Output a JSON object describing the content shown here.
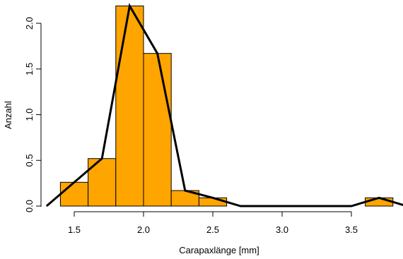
{
  "chart_data": {
    "type": "bar",
    "subtype": "histogram-with-frequency-polygon",
    "title": "",
    "xlabel": "Carapaxlänge [mm]",
    "ylabel": "Anzahl",
    "xlim": [
      1.3,
      3.85
    ],
    "ylim": [
      0,
      2.2
    ],
    "x_ticks": [
      "1.5",
      "2.0",
      "2.5",
      "3.0",
      "3.5"
    ],
    "y_ticks": [
      "0.0",
      "0.5",
      "1.0",
      "1.5",
      "2.0"
    ],
    "bins": [
      {
        "from": 1.4,
        "to": 1.6,
        "value": 0.26
      },
      {
        "from": 1.6,
        "to": 1.8,
        "value": 0.52
      },
      {
        "from": 1.8,
        "to": 2.0,
        "value": 2.19
      },
      {
        "from": 2.0,
        "to": 2.2,
        "value": 1.67
      },
      {
        "from": 2.2,
        "to": 2.4,
        "value": 0.17
      },
      {
        "from": 2.4,
        "to": 2.6,
        "value": 0.09
      },
      {
        "from": 3.6,
        "to": 3.8,
        "value": 0.09
      }
    ],
    "polygon": {
      "x": [
        1.3,
        1.5,
        1.7,
        1.9,
        2.1,
        2.3,
        2.5,
        2.7,
        2.9,
        3.1,
        3.3,
        3.5,
        3.7,
        3.9
      ],
      "y": [
        0,
        0.26,
        0.52,
        2.19,
        1.67,
        0.17,
        0.09,
        0,
        0,
        0,
        0,
        0,
        0.09,
        0
      ]
    },
    "colors": {
      "bar_fill": "#ffa500",
      "bar_stroke": "#000000",
      "line": "#000000"
    },
    "grid": false,
    "legend": "none"
  }
}
